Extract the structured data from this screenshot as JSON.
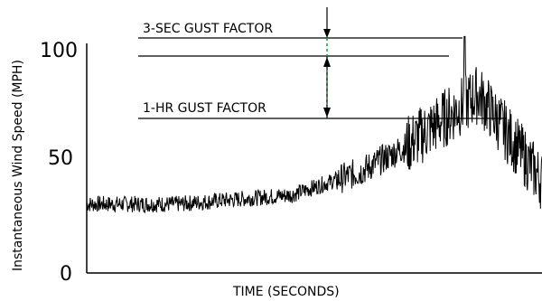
{
  "chart_data": {
    "type": "line",
    "xlabel": "TIME (SECONDS)",
    "ylabel": "Instantaneous Wind Speed (MPH)",
    "ylim": [
      0,
      100
    ],
    "yticks": [
      "0",
      "50",
      "100"
    ],
    "grid": false,
    "series": [
      {
        "segments": [
          {
            "x": [
              0,
              20
            ],
            "y": [
              30,
              30
            ]
          },
          {
            "x": [
              20,
              45
            ],
            "y": [
              30,
              34
            ]
          },
          {
            "x": [
              45,
              60
            ],
            "y": [
              34,
              44
            ]
          },
          {
            "x": [
              60,
              70
            ],
            "y": [
              44,
              55
            ]
          },
          {
            "x": [
              70,
              86
            ],
            "y": [
              55,
              78
            ]
          },
          {
            "x": [
              86,
              100
            ],
            "y": [
              78,
              40
            ]
          }
        ],
        "noise_amplitude": 6,
        "peak": {
          "x": 83,
          "y": 103
        }
      }
    ],
    "annotations": {
      "gust3_label": "3-SEC GUST FACTOR",
      "gust1_label": "1-HR GUST FACTOR",
      "peak_level": 103,
      "ref_level": 97,
      "hour_mean": 68
    }
  }
}
